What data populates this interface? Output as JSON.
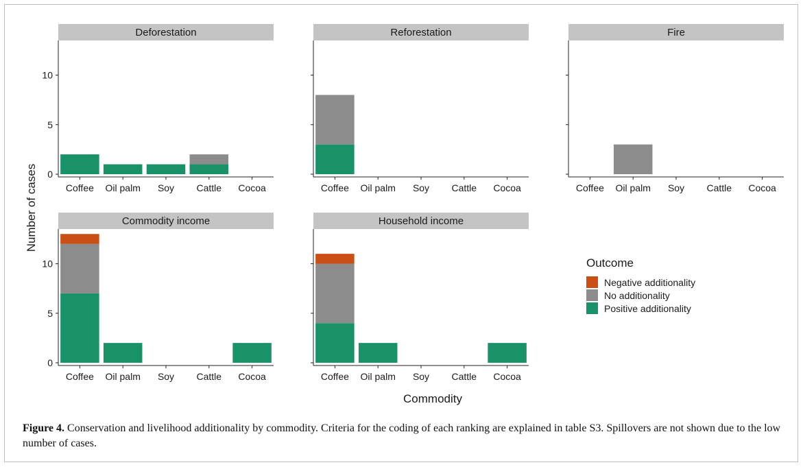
{
  "chart_data": {
    "type": "bar",
    "stacked": true,
    "xlabel": "Commodity",
    "ylabel": "Number of cases",
    "categories": [
      "Coffee",
      "Oil palm",
      "Soy",
      "Cattle",
      "Cocoa"
    ],
    "ylim": [
      0,
      13.5
    ],
    "yticks": [
      0,
      5,
      10
    ],
    "grid": false,
    "legend": {
      "title": "Outcome",
      "placement": "right",
      "entries": [
        {
          "name": "Negative additionality",
          "color": "#c94f14"
        },
        {
          "name": "No additionality",
          "color": "#8c8c8c"
        },
        {
          "name": "Positive additionality",
          "color": "#1a9268"
        }
      ]
    },
    "panels": [
      {
        "title": "Deforestation",
        "series": [
          {
            "name": "Positive additionality",
            "values": [
              2,
              1,
              1,
              1,
              0
            ]
          },
          {
            "name": "No additionality",
            "values": [
              0,
              0,
              0,
              1,
              0
            ]
          },
          {
            "name": "Negative additionality",
            "values": [
              0,
              0,
              0,
              0,
              0
            ]
          }
        ]
      },
      {
        "title": "Reforestation",
        "series": [
          {
            "name": "Positive additionality",
            "values": [
              3,
              0,
              0,
              0,
              0
            ]
          },
          {
            "name": "No additionality",
            "values": [
              5,
              0,
              0,
              0,
              0
            ]
          },
          {
            "name": "Negative additionality",
            "values": [
              0,
              0,
              0,
              0,
              0
            ]
          }
        ]
      },
      {
        "title": "Fire",
        "series": [
          {
            "name": "Positive additionality",
            "values": [
              0,
              0,
              0,
              0,
              0
            ]
          },
          {
            "name": "No additionality",
            "values": [
              0,
              3,
              0,
              0,
              0
            ]
          },
          {
            "name": "Negative additionality",
            "values": [
              0,
              0,
              0,
              0,
              0
            ]
          }
        ]
      },
      {
        "title": "Commodity income",
        "series": [
          {
            "name": "Positive additionality",
            "values": [
              7,
              2,
              0,
              0,
              2
            ]
          },
          {
            "name": "No additionality",
            "values": [
              5,
              0,
              0,
              0,
              0
            ]
          },
          {
            "name": "Negative additionality",
            "values": [
              1,
              0,
              0,
              0,
              0
            ]
          }
        ]
      },
      {
        "title": "Household income",
        "series": [
          {
            "name": "Positive additionality",
            "values": [
              4,
              2,
              0,
              0,
              2
            ]
          },
          {
            "name": "No additionality",
            "values": [
              6,
              0,
              0,
              0,
              0
            ]
          },
          {
            "name": "Negative additionality",
            "values": [
              1,
              0,
              0,
              0,
              0
            ]
          }
        ]
      }
    ]
  },
  "caption": {
    "label": "Figure 4.",
    "text": " Conservation and livelihood additionality by commodity. Criteria for the coding of each ranking are explained in table S3. Spillovers are not shown due to the low number of cases."
  }
}
